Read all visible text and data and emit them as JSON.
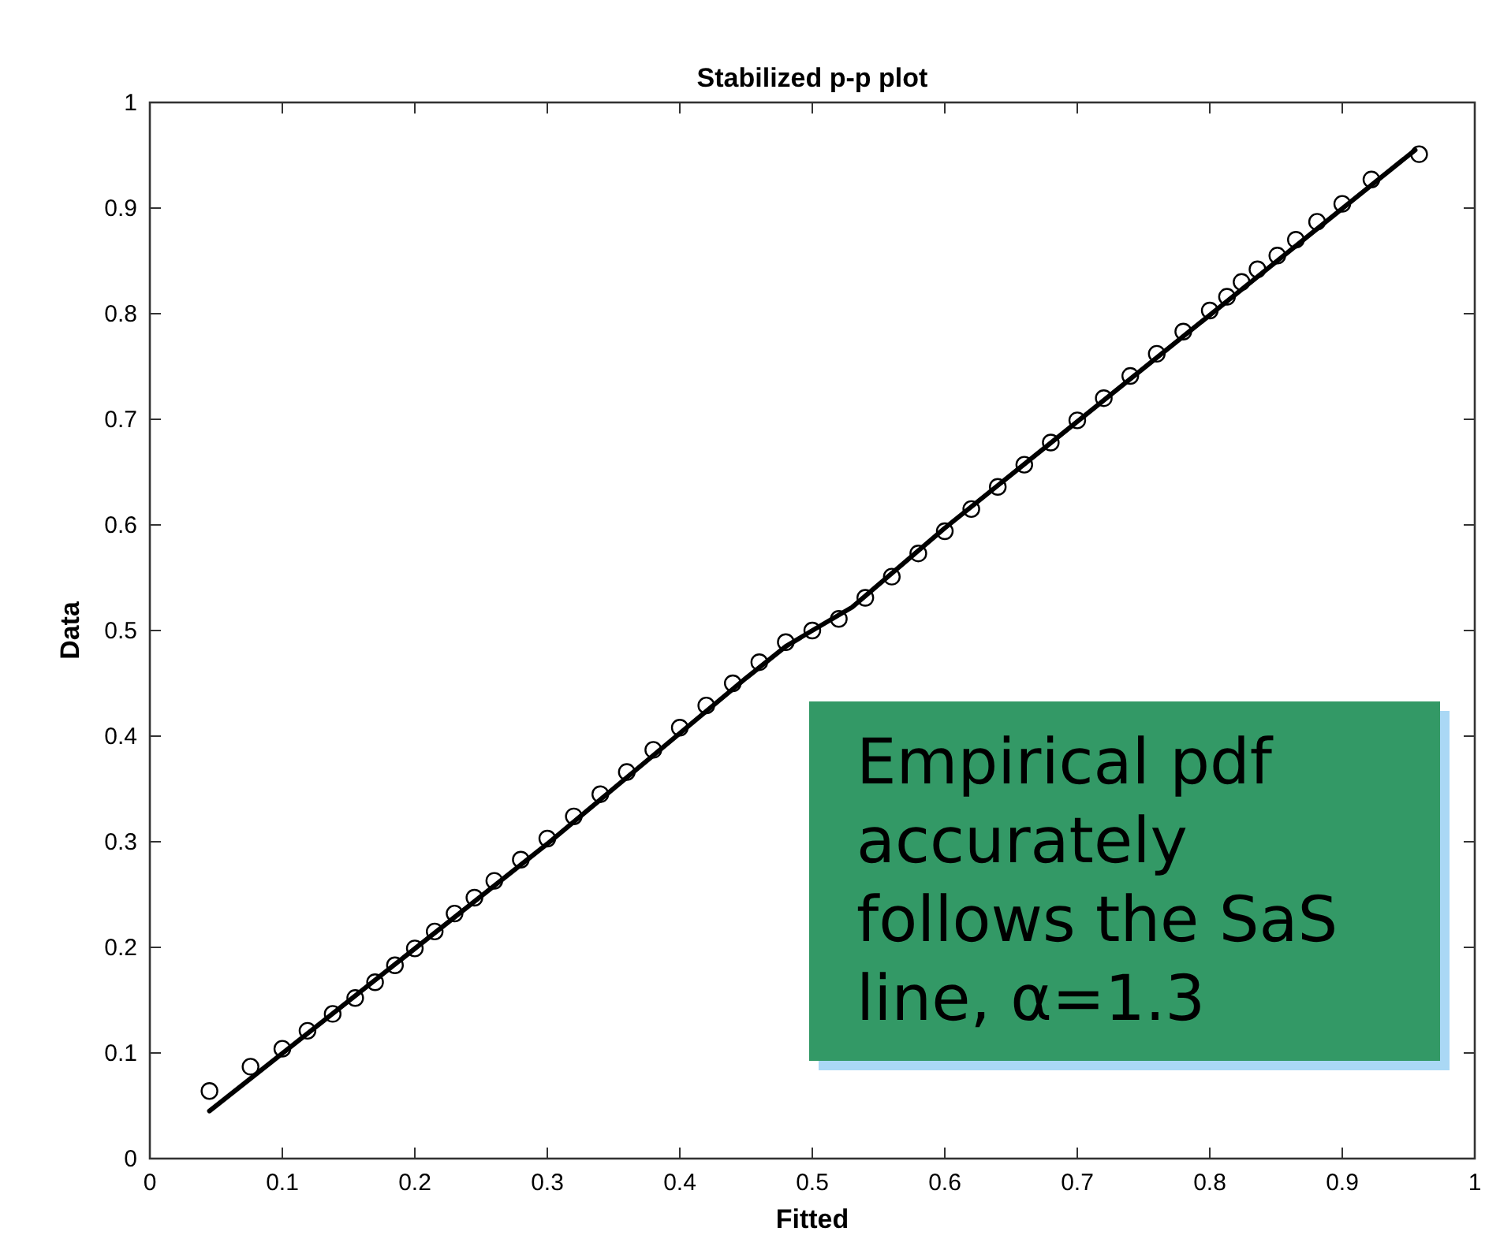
{
  "chart_data": {
    "type": "scatter",
    "title": "Stabilized p-p plot",
    "xlabel": "Fitted",
    "ylabel": "Data",
    "xlim": [
      0,
      1
    ],
    "ylim": [
      0,
      1
    ],
    "xticks": [
      0,
      0.1,
      0.2,
      0.3,
      0.4,
      0.5,
      0.6,
      0.7,
      0.8,
      0.9,
      1
    ],
    "yticks": [
      0,
      0.1,
      0.2,
      0.3,
      0.4,
      0.5,
      0.6,
      0.7,
      0.8,
      0.9,
      1
    ],
    "grid": false,
    "annotations": [
      "Empirical pdf accurately follows the SaS line, α=1.3"
    ],
    "series": [
      {
        "marker": "circle",
        "color": "#000000",
        "x": [
          0.045,
          0.076,
          0.1,
          0.119,
          0.138,
          0.155,
          0.17,
          0.185,
          0.2,
          0.215,
          0.23,
          0.245,
          0.26,
          0.28,
          0.3,
          0.32,
          0.34,
          0.36,
          0.38,
          0.4,
          0.42,
          0.44,
          0.46,
          0.48,
          0.5,
          0.52,
          0.54,
          0.56,
          0.58,
          0.6,
          0.62,
          0.64,
          0.66,
          0.68,
          0.7,
          0.72,
          0.74,
          0.76,
          0.78,
          0.8,
          0.813,
          0.824,
          0.836,
          0.851,
          0.865,
          0.881,
          0.9,
          0.922,
          0.958
        ],
        "values": [
          0.064,
          0.087,
          0.104,
          0.121,
          0.137,
          0.152,
          0.167,
          0.183,
          0.199,
          0.215,
          0.232,
          0.247,
          0.263,
          0.283,
          0.303,
          0.324,
          0.345,
          0.366,
          0.387,
          0.408,
          0.429,
          0.45,
          0.47,
          0.489,
          0.5,
          0.511,
          0.531,
          0.551,
          0.573,
          0.594,
          0.615,
          0.636,
          0.657,
          0.678,
          0.699,
          0.72,
          0.741,
          0.762,
          0.783,
          0.803,
          0.816,
          0.83,
          0.842,
          0.855,
          0.87,
          0.887,
          0.904,
          0.927,
          0.951
        ]
      },
      {
        "type": "line",
        "marker": "none",
        "line_style": "solid",
        "color": "#000000",
        "x": [
          0.045,
          0.3,
          0.45,
          0.48,
          0.5,
          0.53,
          0.6,
          0.955
        ],
        "values": [
          0.045,
          0.298,
          0.455,
          0.485,
          0.5,
          0.522,
          0.597,
          0.955
        ]
      }
    ]
  }
}
